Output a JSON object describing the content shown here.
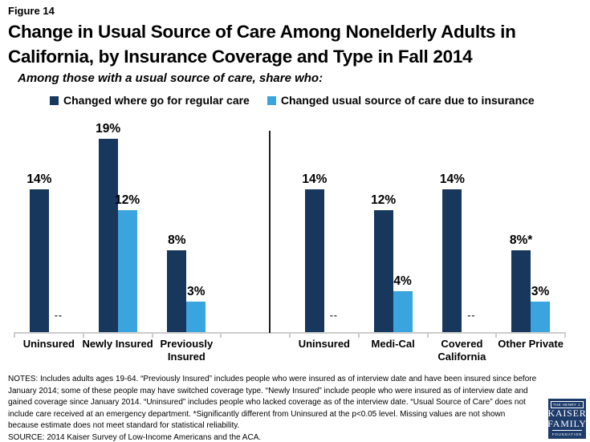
{
  "figure_label": "Figure 14",
  "title": {
    "line1": "Change in Usual Source of Care Among Nonelderly Adults in",
    "line2": "California, by Insurance Coverage and Type in Fall 2014"
  },
  "subtitle": "Among those with a usual source of care, share who:",
  "legend": {
    "items": [
      {
        "label": "Changed where go for regular care",
        "color": "#17375D"
      },
      {
        "label": "Changed usual source of care due to insurance",
        "color": "#3AA4DE"
      }
    ]
  },
  "colors": {
    "dark_blue": "#17375D",
    "light_blue": "#3AA4DE",
    "axis_gray": "#CCCCCC",
    "missing_gray": "#3F3F3F",
    "logo_navy": "#1E3C6B"
  },
  "chart_data": {
    "type": "bar",
    "value_unit": "%",
    "ylim": [
      0,
      21
    ],
    "grid": false,
    "legend_position": "top",
    "missing_marker": "--",
    "series_names": [
      "Changed where go for regular care",
      "Changed usual source of care due to insurance"
    ],
    "groups": [
      {
        "label": "Uninsured",
        "values": [
          14,
          null
        ],
        "value_labels": [
          "14%",
          "--"
        ]
      },
      {
        "label": "Newly Insured",
        "values": [
          19,
          12
        ],
        "value_labels": [
          "19%",
          "12%"
        ]
      },
      {
        "label": "Previously\nInsured",
        "values": [
          8,
          3
        ],
        "value_labels": [
          "8%",
          "3%"
        ]
      },
      {
        "spacer": true,
        "label": "",
        "values": [
          null,
          null
        ],
        "value_labels": [
          "",
          ""
        ]
      },
      {
        "label": "Uninsured",
        "values": [
          14,
          null
        ],
        "value_labels": [
          "14%",
          "--"
        ]
      },
      {
        "label": "Medi-Cal",
        "values": [
          12,
          4
        ],
        "value_labels": [
          "12%",
          "4%"
        ]
      },
      {
        "label": "Covered\nCalifornia",
        "values": [
          14,
          null
        ],
        "value_labels": [
          "14%",
          "--"
        ]
      },
      {
        "label": "Other Private",
        "values": [
          8,
          3
        ],
        "value_labels": [
          "8%*",
          "3%"
        ]
      }
    ],
    "section_divider_after_group": 3
  },
  "notes_lines": [
    "NOTES: Includes adults ages 19-64. “Previously Insured” includes people who were insured as of interview date and have been insured since before",
    "January 2014; some of these people may have switched coverage type. “Newly Insured” include people who were insured as of interview date and",
    "gained coverage since January 2014. “Uninsured” includes people who lacked coverage as of the interview date. “Usual Source of Care” does not",
    "include care received at an emergency department. *Significantly different from Uninsured at the p<0.05 level. Missing values are not shown",
    "because estimate does not meet standard for statistical reliability.",
    "SOURCE: 2014 Kaiser Survey of Low-Income Americans and the ACA."
  ],
  "logo": {
    "line1": "THE HENRY J.",
    "line2": "KAISER",
    "line3": "FAMILY",
    "line4": "FOUNDATION"
  }
}
